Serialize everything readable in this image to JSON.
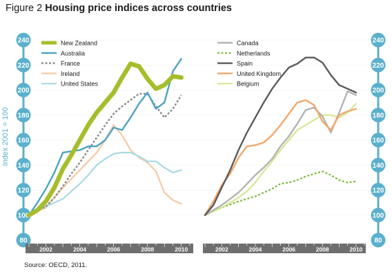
{
  "figure": {
    "prefix": "Figure 2",
    "title": "Housing price indices across countries",
    "source": "Source: OECD, 2011.",
    "ylabel": "Index 2001 = 100"
  },
  "colors": {
    "axis_bubble": "#5ab0cc",
    "year_bar": "#6e6e6e",
    "year_text": "#ffffff"
  },
  "chart_data": [
    {
      "type": "line",
      "ylim": [
        80,
        240
      ],
      "yticks": [
        80,
        100,
        120,
        140,
        160,
        180,
        200,
        220,
        240
      ],
      "xlim": [
        2001,
        2010.5
      ],
      "xticks": [
        2002,
        2004,
        2006,
        2008,
        2010
      ],
      "ylabel": "Index 2001 = 100",
      "legend": "top-left",
      "series": [
        {
          "name": "Ireland",
          "color": "#f6c9a4",
          "width": 2.2,
          "dash": "",
          "x": [
            2001,
            2002,
            2003,
            2004,
            2005,
            2005.5,
            2006,
            2006.5,
            2007,
            2007.5,
            2008,
            2008.5,
            2009,
            2009.5,
            2010
          ],
          "y": [
            100,
            106,
            122,
            136,
            150,
            160,
            172,
            164,
            152,
            146,
            142,
            135,
            118,
            112,
            109
          ]
        },
        {
          "name": "United States",
          "color": "#a8d9e5",
          "width": 2.2,
          "dash": "",
          "x": [
            2001,
            2002,
            2003,
            2004,
            2004.5,
            2005,
            2005.5,
            2006,
            2006.5,
            2007,
            2007.5,
            2008,
            2008.5,
            2009,
            2009.5,
            2010
          ],
          "y": [
            100,
            107,
            113,
            125,
            132,
            140,
            145,
            149,
            150,
            150,
            147,
            143,
            143,
            138,
            134,
            136
          ]
        },
        {
          "name": "France",
          "color": "#8a8a8a",
          "width": 2.4,
          "dash": "3,2.5",
          "x": [
            2001,
            2002,
            2002.5,
            2003,
            2003.5,
            2004,
            2004.5,
            2005,
            2005.5,
            2006,
            2006.5,
            2007,
            2007.5,
            2008,
            2008.5,
            2009,
            2009.5,
            2010
          ],
          "y": [
            100,
            107,
            114,
            123,
            133,
            142,
            152,
            162,
            172,
            181,
            187,
            192,
            197,
            197,
            187,
            178,
            185,
            196
          ]
        },
        {
          "name": "Australia",
          "color": "#4ba3c4",
          "width": 2.4,
          "dash": "",
          "x": [
            2001,
            2001.5,
            2002,
            2002.5,
            2003,
            2003.5,
            2004,
            2004.5,
            2005,
            2005.5,
            2006,
            2006.5,
            2007,
            2007.5,
            2008,
            2008.5,
            2009,
            2009.5,
            2010
          ],
          "y": [
            100,
            110,
            121,
            134,
            150,
            151,
            152,
            155,
            155,
            160,
            170,
            168,
            178,
            189,
            198,
            185,
            190,
            215,
            225
          ]
        },
        {
          "name": "New Zealand",
          "color": "#a7bd2a",
          "width": 6.5,
          "dash": "",
          "x": [
            2001,
            2001.5,
            2002,
            2002.5,
            2003,
            2003.5,
            2004,
            2004.5,
            2005,
            2005.5,
            2006,
            2006.5,
            2007,
            2007.5,
            2008,
            2008.5,
            2009,
            2009.5,
            2010
          ],
          "y": [
            100,
            104,
            111,
            122,
            137,
            148,
            160,
            172,
            182,
            190,
            198,
            210,
            221,
            219,
            209,
            201,
            204,
            211,
            210
          ]
        }
      ],
      "legend_order": [
        "New Zealand",
        "Australia",
        "France",
        "Ireland",
        "United States"
      ]
    },
    {
      "type": "line",
      "ylim": [
        80,
        240
      ],
      "yticks": [
        80,
        100,
        120,
        140,
        160,
        180,
        200,
        220,
        240
      ],
      "xlim": [
        2001,
        2010.5
      ],
      "xticks": [
        2002,
        2004,
        2006,
        2008,
        2010
      ],
      "legend": "top-left",
      "series": [
        {
          "name": "Netherlands",
          "color": "#7fb83b",
          "width": 2.2,
          "dash": "3,2.5",
          "x": [
            2001,
            2002,
            2003,
            2004,
            2004.5,
            2005,
            2005.5,
            2006,
            2006.5,
            2007,
            2007.5,
            2008,
            2008.5,
            2009,
            2009.5,
            2010
          ],
          "y": [
            100,
            106,
            111,
            115,
            118,
            121,
            125,
            126,
            128,
            131,
            133,
            135,
            132,
            128,
            126,
            127
          ]
        },
        {
          "name": "Belgium",
          "color": "#d6e692",
          "width": 2.2,
          "dash": "",
          "x": [
            2001,
            2002,
            2002.5,
            2003,
            2003.5,
            2004,
            2004.5,
            2005,
            2005.5,
            2006,
            2006.5,
            2007,
            2007.5,
            2008,
            2008.5,
            2009,
            2009.5,
            2010
          ],
          "y": [
            100,
            106,
            110,
            114,
            119,
            126,
            135,
            143,
            152,
            160,
            168,
            172,
            176,
            180,
            180,
            178,
            182,
            189
          ]
        },
        {
          "name": "Canada",
          "color": "#b3b3b3",
          "width": 2.4,
          "dash": "",
          "x": [
            2001,
            2001.5,
            2002,
            2002.5,
            2003,
            2003.5,
            2004,
            2004.5,
            2005,
            2005.5,
            2006,
            2006.5,
            2007,
            2007.5,
            2008,
            2008.5,
            2009,
            2009.5,
            2010
          ],
          "y": [
            100,
            104,
            108,
            113,
            118,
            125,
            132,
            138,
            145,
            155,
            163,
            173,
            184,
            186,
            179,
            166,
            182,
            199,
            196
          ]
        },
        {
          "name": "United Kingdom",
          "color": "#f3a76a",
          "width": 2.4,
          "dash": "",
          "x": [
            2001,
            2001.5,
            2002,
            2002.5,
            2003,
            2003.5,
            2004,
            2004.5,
            2005,
            2005.5,
            2006,
            2006.5,
            2007,
            2007.5,
            2008,
            2008.5,
            2009,
            2009.5,
            2010
          ],
          "y": [
            100,
            111,
            124,
            133,
            146,
            155,
            156,
            158,
            164,
            172,
            181,
            190,
            192,
            188,
            175,
            168,
            180,
            183,
            185
          ]
        },
        {
          "name": "Spain",
          "color": "#5a5a5a",
          "width": 2.4,
          "dash": "",
          "x": [
            2001,
            2001.5,
            2002,
            2002.5,
            2003,
            2003.5,
            2004,
            2004.5,
            2005,
            2005.5,
            2006,
            2006.5,
            2007,
            2007.5,
            2008,
            2008.5,
            2009,
            2009.5,
            2010
          ],
          "y": [
            100,
            108,
            122,
            136,
            152,
            166,
            178,
            190,
            201,
            210,
            218,
            221,
            226,
            226,
            222,
            212,
            204,
            201,
            198
          ]
        }
      ],
      "legend_order": [
        "Canada",
        "Netherlands",
        "Spain",
        "United Kingdom",
        "Belgium"
      ]
    }
  ]
}
